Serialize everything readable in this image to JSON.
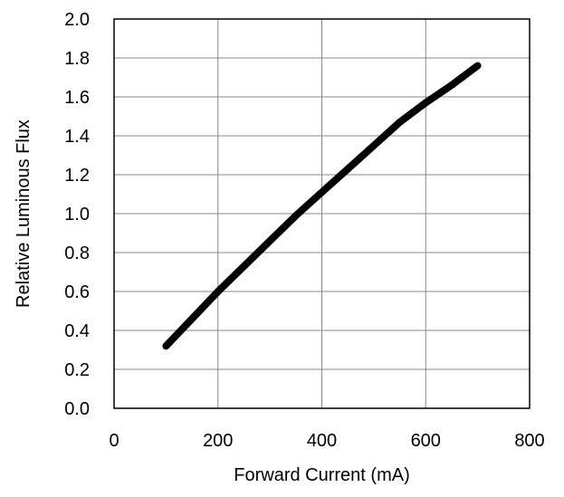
{
  "chart_data": {
    "type": "line",
    "title": "",
    "xlabel": "Forward Current (mA)",
    "ylabel": "Relative Luminous Flux",
    "xlim": [
      0,
      800
    ],
    "ylim": [
      0.0,
      2.0
    ],
    "x_ticks": [
      "0",
      "200",
      "400",
      "600",
      "800"
    ],
    "y_ticks": [
      "0.0",
      "0.2",
      "0.4",
      "0.6",
      "0.8",
      "1.0",
      "1.2",
      "1.4",
      "1.6",
      "1.8",
      "2.0"
    ],
    "grid": true,
    "legend": "none",
    "series": [
      {
        "color": "#000000",
        "x": [
          100,
          150,
          200,
          250,
          300,
          350,
          400,
          450,
          500,
          550,
          600,
          650,
          700
        ],
        "y": [
          0.32,
          0.46,
          0.6,
          0.73,
          0.86,
          0.99,
          1.11,
          1.23,
          1.35,
          1.47,
          1.57,
          1.66,
          1.76
        ]
      }
    ]
  }
}
